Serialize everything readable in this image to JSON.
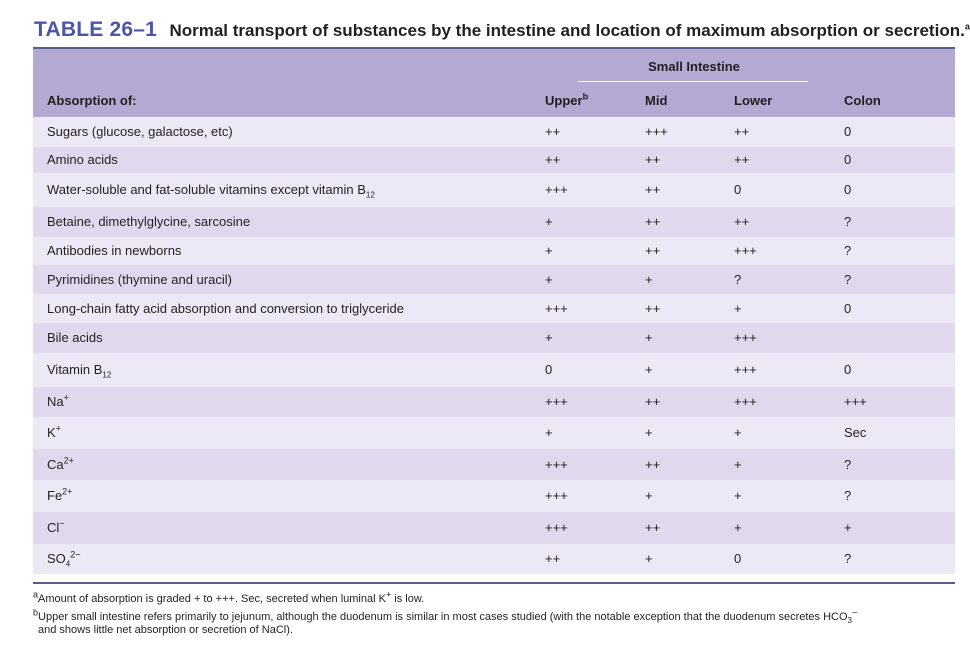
{
  "title": {
    "label": "TABLE 26–1",
    "caption": "Normal transport of substances by the intestine and location of maximum absorption or secretion.",
    "caption_sup": "a"
  },
  "header": {
    "group": "Small Intestine",
    "col_absorption": "Absorption of:",
    "col_upper": "Upper",
    "col_upper_sup": "b",
    "col_mid": "Mid",
    "col_lower": "Lower",
    "col_colon": "Colon"
  },
  "rows": [
    {
      "name": "Sugars (glucose, galactose, etc)",
      "upper": "++",
      "mid": "+++",
      "lower": "++",
      "colon": "0"
    },
    {
      "name": "Amino acids",
      "upper": "++",
      "mid": "++",
      "lower": "++",
      "colon": "0"
    },
    {
      "name": "Water-soluble and fat-soluble vitamins except vitamin B",
      "name_sub": "12",
      "upper": "+++",
      "mid": "++",
      "lower": "0",
      "colon": "0"
    },
    {
      "name": "Betaine, dimethylglycine, sarcosine",
      "upper": "+",
      "mid": "++",
      "lower": "++",
      "colon": "?"
    },
    {
      "name": "Antibodies in newborns",
      "upper": "+",
      "mid": "++",
      "lower": "+++",
      "colon": "?"
    },
    {
      "name": "Pyrimidines (thymine and uracil)",
      "upper": "+",
      "mid": "+",
      "lower": "?",
      "colon": "?"
    },
    {
      "name": "Long-chain fatty acid absorption and conversion to triglyceride",
      "upper": "+++",
      "mid": "++",
      "lower": "+",
      "colon": "0"
    },
    {
      "name": "Bile acids",
      "upper": "+",
      "mid": "+",
      "lower": "+++",
      "colon": ""
    },
    {
      "name": "Vitamin B",
      "name_sub": "12",
      "upper": "0",
      "mid": "+",
      "lower": "+++",
      "colon": "0"
    },
    {
      "name": "Na",
      "name_sup": "+",
      "upper": "+++",
      "mid": "++",
      "lower": "+++",
      "colon": "+++"
    },
    {
      "name": "K",
      "name_sup": "+",
      "upper": "+",
      "mid": "+",
      "lower": "+",
      "colon": "Sec"
    },
    {
      "name": "Ca",
      "name_sup": "2+",
      "upper": "+++",
      "mid": "++",
      "lower": "+",
      "colon": "?"
    },
    {
      "name": "Fe",
      "name_sup": "2+",
      "upper": "+++",
      "mid": "+",
      "lower": "+",
      "colon": "?"
    },
    {
      "name": "Cl",
      "name_sup": "−",
      "upper": "+++",
      "mid": "++",
      "lower": "+",
      "colon": "+"
    },
    {
      "name": "SO",
      "name_sub": "4",
      "name_sup": "2−",
      "upper": "++",
      "mid": "+",
      "lower": "0",
      "colon": "?"
    }
  ],
  "footnotes": {
    "a_marker": "a",
    "a_text": "Amount of absorption is graded + to +++. Sec, secreted when luminal K",
    "a_sup": "+",
    "a_tail": " is low.",
    "b_marker": "b",
    "b_text": "Upper small intestine refers primarily to jejunum, although the duodenum is similar in most cases studied (with the notable exception that the duodenum secretes HCO",
    "b_sub": "3",
    "b_sup": "−",
    "b_line2": "and shows little net absorption or secretion of NaCl)."
  },
  "colors": {
    "title_blue": "#4a56a8",
    "header_purple": "#b3a9d3",
    "row_light": "#ece8f5",
    "row_dark": "#e0d9ee"
  }
}
